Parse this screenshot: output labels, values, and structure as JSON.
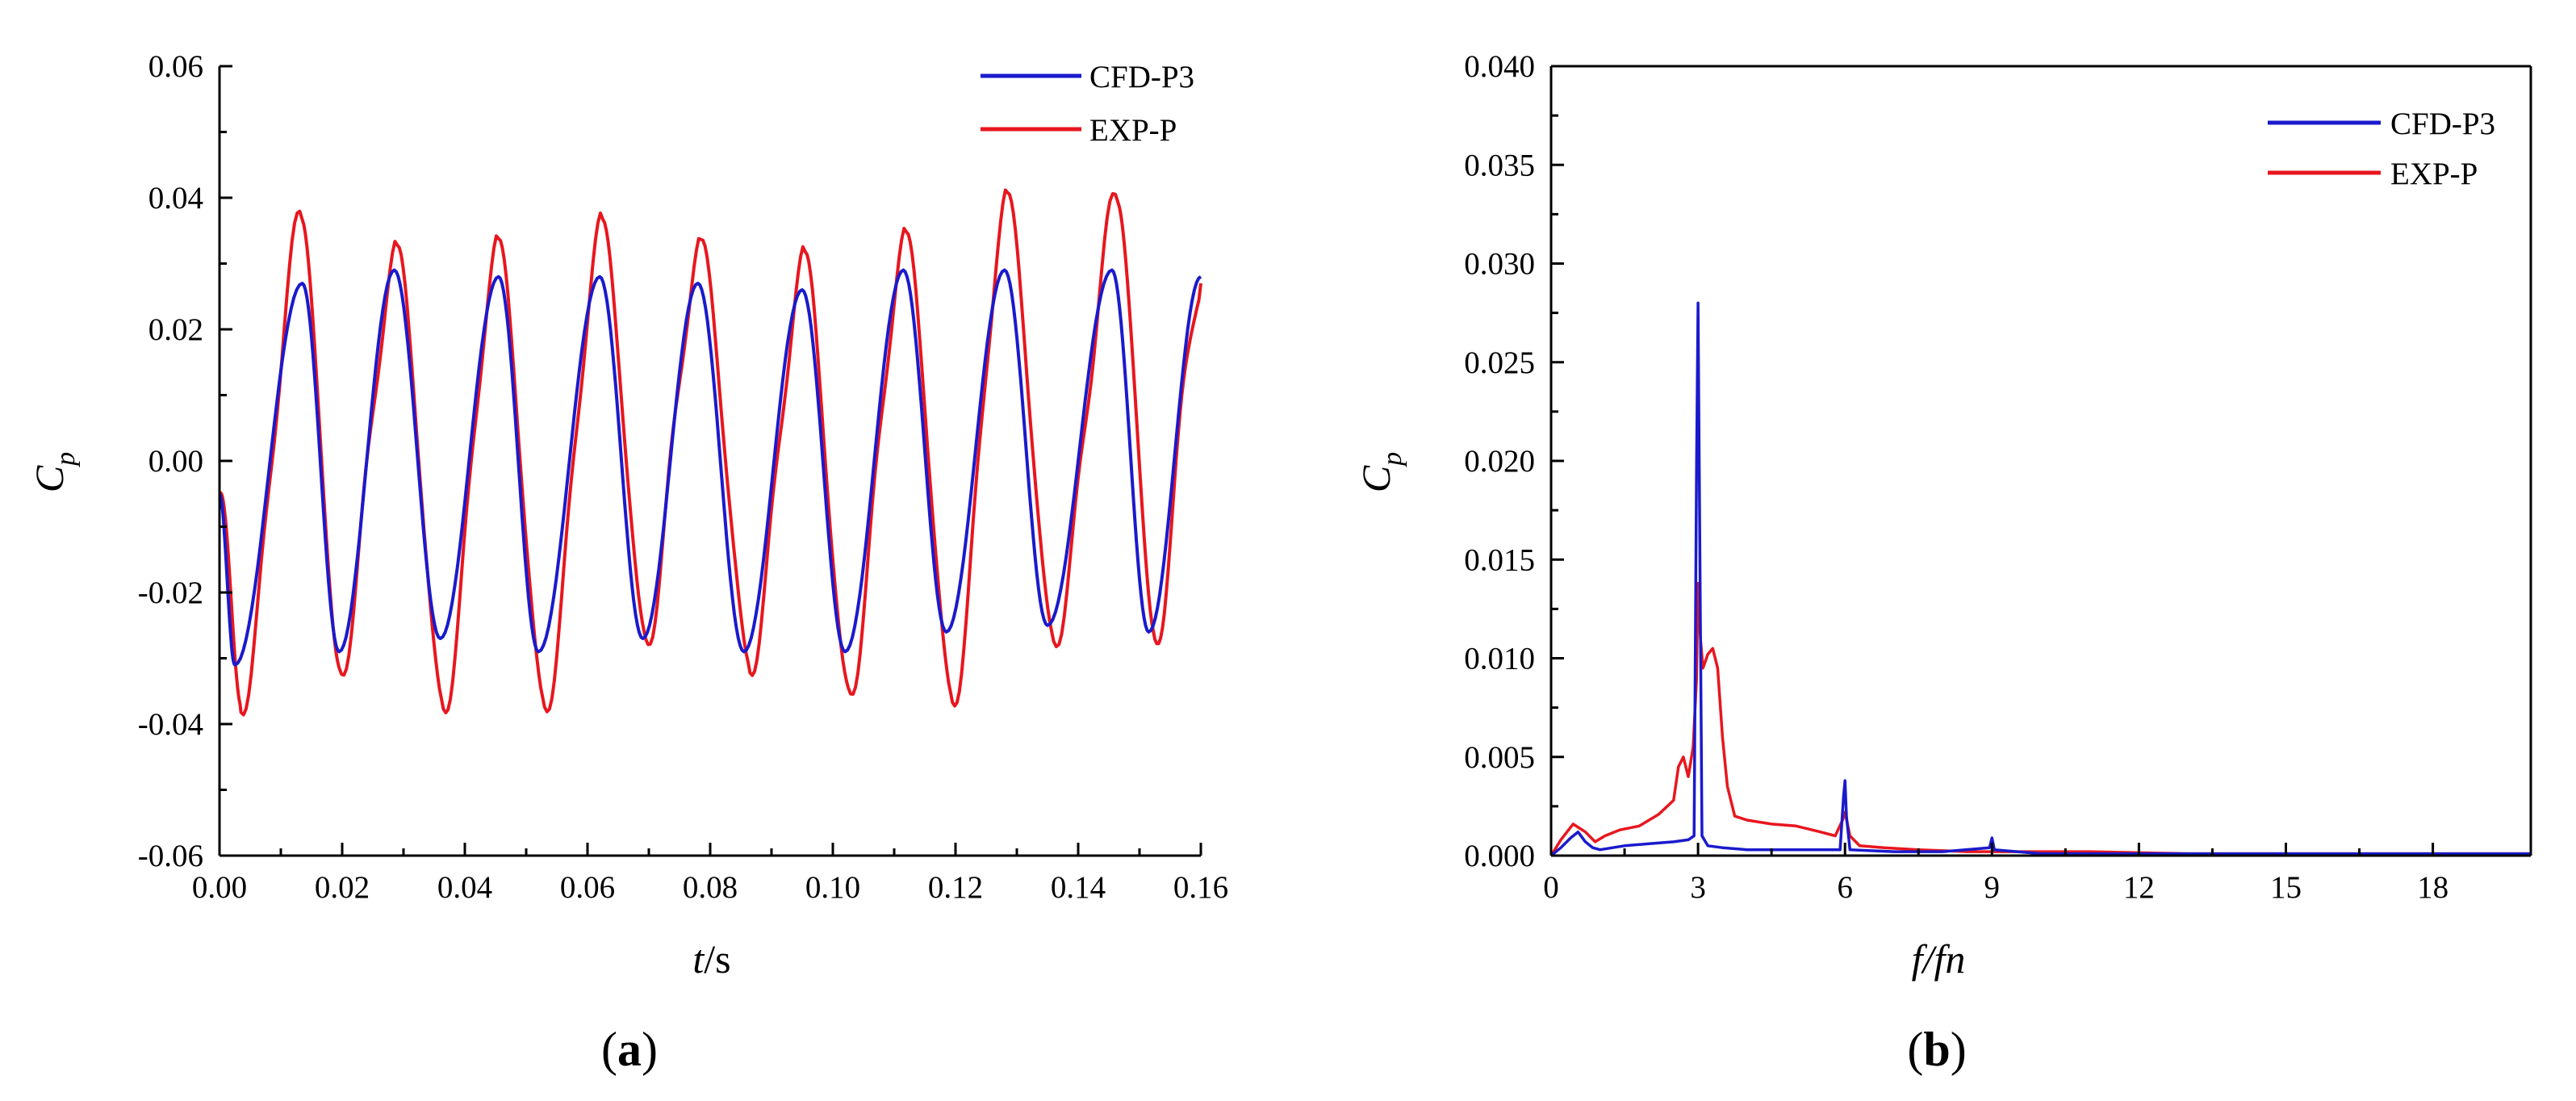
{
  "chart_data": [
    {
      "type": "line",
      "panel_label": "(a)",
      "panel_label_letter": "a",
      "xlabel": "t/s",
      "xlabel_var": "t",
      "xlabel_unit": "/s",
      "ylabel": "Cp",
      "ylabel_main": "C",
      "ylabel_sub": "p",
      "xlim": [
        0.0,
        0.16
      ],
      "ylim": [
        -0.06,
        0.06
      ],
      "xticks": [
        0.0,
        0.02,
        0.04,
        0.06,
        0.08,
        0.1,
        0.12,
        0.14,
        0.16
      ],
      "xtick_labels": [
        "0.00",
        "0.02",
        "0.04",
        "0.06",
        "0.08",
        "0.10",
        "0.12",
        "0.14",
        "0.16"
      ],
      "yticks": [
        -0.06,
        -0.04,
        -0.02,
        0.0,
        0.02,
        0.04,
        0.06
      ],
      "ytick_labels": [
        "-0.06",
        "-0.04",
        "-0.02",
        "0.00",
        "0.02",
        "0.04",
        "0.06"
      ],
      "legend_position": "top-right",
      "series": [
        {
          "name": "CFD-P3",
          "color": "#1a1acc",
          "period": 0.0166,
          "peak_times": [
            0.0135,
            0.0285,
            0.0455,
            0.062,
            0.078,
            0.095,
            0.1115,
            0.128,
            0.1455
          ],
          "peak_values": [
            0.027,
            0.029,
            0.028,
            0.028,
            0.027,
            0.026,
            0.029,
            0.029,
            0.029
          ],
          "trough_times": [
            0.0025,
            0.0195,
            0.036,
            0.052,
            0.069,
            0.0855,
            0.102,
            0.1185,
            0.135,
            0.1515
          ],
          "trough_values": [
            -0.031,
            -0.029,
            -0.027,
            -0.029,
            -0.027,
            -0.029,
            -0.029,
            -0.026,
            -0.025,
            -0.026
          ],
          "end_value": 0.028
        },
        {
          "name": "EXP-P",
          "color": "#e8161e",
          "period": 0.0166,
          "peak_times": [
            0.0135,
            0.029,
            0.0455,
            0.0625,
            0.0785,
            0.0955,
            0.112,
            0.1285,
            0.1465
          ],
          "peak_values": [
            0.036,
            0.031,
            0.032,
            0.035,
            0.032,
            0.03,
            0.033,
            0.039,
            0.039
          ],
          "trough_times": [
            0.0035,
            0.0195,
            0.0365,
            0.053,
            0.0695,
            0.0865,
            0.1025,
            0.1195,
            0.136,
            0.1525
          ],
          "trough_values": [
            -0.036,
            -0.031,
            -0.036,
            -0.036,
            -0.026,
            -0.03,
            -0.034,
            -0.035,
            -0.026,
            -0.026
          ],
          "end_value": 0.027
        }
      ]
    },
    {
      "type": "line",
      "panel_label": "(b)",
      "panel_label_letter": "b",
      "xlabel": "f/fn",
      "ylabel": "Cp",
      "ylabel_main": "C",
      "ylabel_sub": "p",
      "xlim": [
        0,
        20
      ],
      "ylim": [
        0.0,
        0.04
      ],
      "xticks": [
        0,
        3,
        6,
        9,
        12,
        15,
        18
      ],
      "xtick_labels": [
        "0",
        "3",
        "6",
        "9",
        "12",
        "15",
        "18"
      ],
      "yticks": [
        0.0,
        0.005,
        0.01,
        0.015,
        0.02,
        0.025,
        0.03,
        0.035,
        0.04
      ],
      "ytick_labels": [
        "0.000",
        "0.005",
        "0.010",
        "0.015",
        "0.020",
        "0.025",
        "0.030",
        "0.035",
        "0.040"
      ],
      "legend_position": "top-right",
      "series": [
        {
          "name": "CFD-P3",
          "color": "#1a1acc",
          "x": [
            0,
            0.2,
            0.4,
            0.55,
            0.7,
            0.85,
            1.0,
            1.5,
            2.0,
            2.5,
            2.8,
            2.92,
            2.97,
            3.0,
            3.03,
            3.08,
            3.2,
            3.5,
            4.0,
            5.0,
            5.9,
            5.97,
            6.0,
            6.03,
            6.1,
            7.0,
            8.0,
            8.95,
            9.0,
            9.05,
            10.0,
            12.0,
            15.0,
            20.0
          ],
          "y": [
            0.0,
            0.0004,
            0.0009,
            0.0012,
            0.0007,
            0.0004,
            0.0003,
            0.0005,
            0.0006,
            0.0007,
            0.0008,
            0.001,
            0.02,
            0.028,
            0.018,
            0.001,
            0.0005,
            0.0004,
            0.0003,
            0.0003,
            0.0003,
            0.003,
            0.0038,
            0.002,
            0.0003,
            0.0002,
            0.0002,
            0.0004,
            0.0009,
            0.0003,
            0.0001,
            0.0001,
            0.0001,
            0.0001
          ]
        },
        {
          "name": "EXP-P",
          "color": "#e8161e",
          "x": [
            0,
            0.2,
            0.45,
            0.7,
            0.9,
            1.1,
            1.4,
            1.8,
            2.2,
            2.5,
            2.6,
            2.7,
            2.8,
            2.9,
            2.97,
            3.0,
            3.05,
            3.1,
            3.2,
            3.3,
            3.4,
            3.5,
            3.6,
            3.75,
            4.0,
            4.5,
            5.0,
            5.5,
            5.8,
            5.95,
            6.0,
            6.1,
            6.3,
            6.8,
            7.5,
            8.5,
            9.5,
            11.0,
            13.0,
            16.0,
            20.0
          ],
          "y": [
            0.0,
            0.0008,
            0.0016,
            0.0012,
            0.0007,
            0.001,
            0.0013,
            0.0015,
            0.0021,
            0.0028,
            0.0045,
            0.005,
            0.004,
            0.0055,
            0.009,
            0.0138,
            0.011,
            0.0095,
            0.0102,
            0.0105,
            0.0095,
            0.006,
            0.0035,
            0.002,
            0.0018,
            0.0016,
            0.0015,
            0.0012,
            0.001,
            0.0018,
            0.0022,
            0.001,
            0.0005,
            0.0004,
            0.0003,
            0.0002,
            0.0002,
            0.0002,
            0.0001,
            0.0001,
            0.0001
          ]
        }
      ]
    }
  ]
}
